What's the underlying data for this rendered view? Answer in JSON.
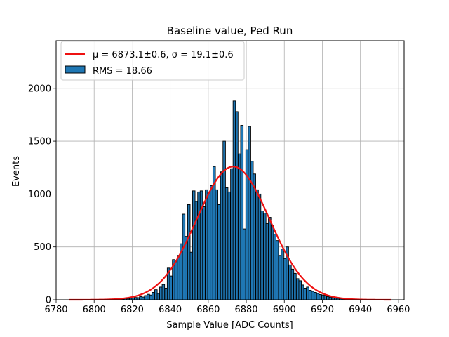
{
  "chart_data": {
    "type": "bar",
    "title": "Baseline value, Ped Run",
    "xlabel": "Sample Value [ADC Counts]",
    "ylabel": "Events",
    "xlim": [
      6780,
      6963
    ],
    "ylim": [
      0,
      2450
    ],
    "xticks": [
      6780,
      6800,
      6820,
      6840,
      6860,
      6880,
      6900,
      6920,
      6940,
      6960
    ],
    "yticks": [
      0,
      500,
      1000,
      1500,
      2000
    ],
    "grid": true,
    "legend_position": "top-left",
    "series": [
      {
        "name": "RMS = 18.66",
        "kind": "histogram",
        "color": "#1f77b4",
        "edge_color": "#000000",
        "bin_width": 1.33,
        "bins": [
          [
            6811.2,
            5
          ],
          [
            6812.5,
            8
          ],
          [
            6813.8,
            10
          ],
          [
            6815.2,
            6
          ],
          [
            6816.5,
            12
          ],
          [
            6817.8,
            9
          ],
          [
            6819.2,
            14
          ],
          [
            6820.5,
            18
          ],
          [
            6821.8,
            22
          ],
          [
            6823.1,
            20
          ],
          [
            6824.5,
            30
          ],
          [
            6825.8,
            26
          ],
          [
            6827.1,
            40
          ],
          [
            6828.5,
            52
          ],
          [
            6829.8,
            45
          ],
          [
            6831.1,
            70
          ],
          [
            6832.5,
            95
          ],
          [
            6833.8,
            60
          ],
          [
            6835.1,
            120
          ],
          [
            6836.4,
            145
          ],
          [
            6837.8,
            110
          ],
          [
            6839.1,
            300
          ],
          [
            6840.4,
            225
          ],
          [
            6841.8,
            380
          ],
          [
            6843.1,
            360
          ],
          [
            6844.4,
            420
          ],
          [
            6845.8,
            530
          ],
          [
            6847.1,
            810
          ],
          [
            6848.4,
            600
          ],
          [
            6849.8,
            900
          ],
          [
            6851.1,
            450
          ],
          [
            6852.4,
            1030
          ],
          [
            6853.7,
            930
          ],
          [
            6855.1,
            1020
          ],
          [
            6856.4,
            1030
          ],
          [
            6857.7,
            880
          ],
          [
            6859.1,
            1040
          ],
          [
            6860.4,
            1020
          ],
          [
            6861.7,
            1080
          ],
          [
            6863.1,
            1260
          ],
          [
            6864.4,
            1040
          ],
          [
            6865.7,
            900
          ],
          [
            6867.1,
            1210
          ],
          [
            6868.4,
            1500
          ],
          [
            6869.7,
            1060
          ],
          [
            6871.0,
            1020
          ],
          [
            6872.4,
            1240
          ],
          [
            6873.7,
            1880
          ],
          [
            6875.0,
            1780
          ],
          [
            6876.4,
            1380
          ],
          [
            6877.7,
            1650
          ],
          [
            6879.0,
            670
          ],
          [
            6880.4,
            1420
          ],
          [
            6881.7,
            1640
          ],
          [
            6883.0,
            1310
          ],
          [
            6884.3,
            1190
          ],
          [
            6885.7,
            1040
          ],
          [
            6887.0,
            1000
          ],
          [
            6888.3,
            840
          ],
          [
            6889.7,
            820
          ],
          [
            6891.0,
            720
          ],
          [
            6892.3,
            780
          ],
          [
            6893.7,
            700
          ],
          [
            6895.0,
            620
          ],
          [
            6896.3,
            560
          ],
          [
            6897.6,
            420
          ],
          [
            6899.0,
            480
          ],
          [
            6900.3,
            390
          ],
          [
            6901.6,
            500
          ],
          [
            6903.0,
            330
          ],
          [
            6904.3,
            290
          ],
          [
            6905.6,
            250
          ],
          [
            6907.0,
            200
          ],
          [
            6908.3,
            180
          ],
          [
            6909.6,
            140
          ],
          [
            6910.9,
            110
          ],
          [
            6912.3,
            120
          ],
          [
            6913.6,
            90
          ],
          [
            6914.9,
            80
          ],
          [
            6916.3,
            70
          ],
          [
            6917.6,
            60
          ],
          [
            6918.9,
            50
          ],
          [
            6920.3,
            45
          ],
          [
            6921.6,
            42
          ],
          [
            6922.9,
            30
          ],
          [
            6924.2,
            25
          ],
          [
            6925.6,
            20
          ],
          [
            6926.9,
            15
          ],
          [
            6928.2,
            12
          ],
          [
            6929.6,
            10
          ],
          [
            6930.9,
            8
          ],
          [
            6932.2,
            6
          ],
          [
            6933.6,
            5
          ],
          [
            6934.9,
            4
          ]
        ]
      },
      {
        "name": "μ = 6873.1±0.6, σ = 19.1±0.6",
        "kind": "gaussian_fit",
        "color": "#ee1111",
        "mu": 6873.1,
        "sigma": 19.1,
        "amplitude": 1260,
        "x_range": [
          6787,
          6956
        ]
      }
    ],
    "legend": {
      "fit_label": "μ = 6873.1±0.6, σ = 19.1±0.6",
      "hist_label": "RMS = 18.66"
    }
  }
}
